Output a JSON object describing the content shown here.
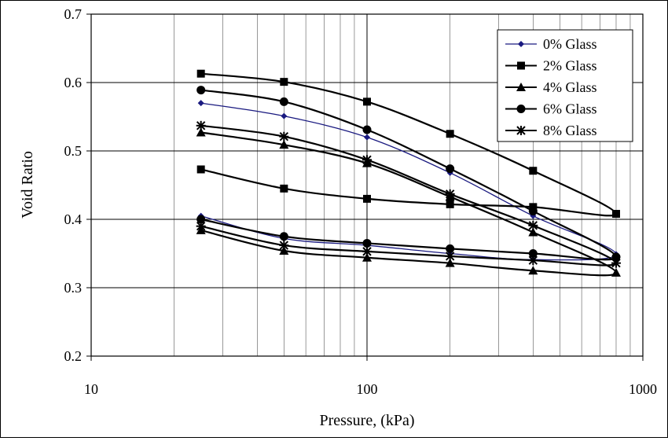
{
  "chart_data": {
    "type": "line",
    "title": "",
    "xlabel": "Pressure, (kPa)",
    "ylabel": "Void Ratio",
    "x_scale": "log",
    "xlim": [
      10,
      1000
    ],
    "ylim": [
      0.2,
      0.7
    ],
    "x_ticks": [
      10,
      100,
      1000
    ],
    "x_tick_labels": [
      "10",
      "100",
      "1000"
    ],
    "y_ticks": [
      0.2,
      0.3,
      0.4,
      0.5,
      0.6,
      0.7
    ],
    "y_tick_labels": [
      "0.2",
      "0.3",
      "0.4",
      "0.5",
      "0.6",
      "0.7"
    ],
    "grid": true,
    "legend_position": "top-right",
    "x": [
      25,
      50,
      100,
      200,
      400,
      800,
      400,
      200,
      100,
      50,
      25
    ],
    "series": [
      {
        "name": "0% Glass",
        "color": "#1a1a80",
        "marker": "diamond",
        "values": [
          0.57,
          0.551,
          0.52,
          0.468,
          0.405,
          0.349,
          0.341,
          0.35,
          0.362,
          0.372,
          0.405
        ]
      },
      {
        "name": "2% Glass",
        "color": "#000000",
        "marker": "square",
        "values": [
          0.613,
          0.601,
          0.572,
          0.525,
          0.471,
          0.408,
          0.418,
          0.422,
          0.43,
          0.445,
          0.473
        ]
      },
      {
        "name": "4% Glass",
        "color": "#000000",
        "marker": "triangle",
        "values": [
          0.527,
          0.509,
          0.482,
          0.433,
          0.381,
          0.322,
          0.325,
          0.336,
          0.344,
          0.354,
          0.384
        ]
      },
      {
        "name": "6% Glass",
        "color": "#000000",
        "marker": "circle",
        "values": [
          0.589,
          0.572,
          0.531,
          0.474,
          0.412,
          0.345,
          0.35,
          0.357,
          0.365,
          0.375,
          0.4
        ]
      },
      {
        "name": "8% Glass",
        "color": "#000000",
        "marker": "asterisk",
        "values": [
          0.537,
          0.521,
          0.487,
          0.437,
          0.391,
          0.336,
          0.34,
          0.346,
          0.353,
          0.362,
          0.39
        ]
      }
    ]
  }
}
